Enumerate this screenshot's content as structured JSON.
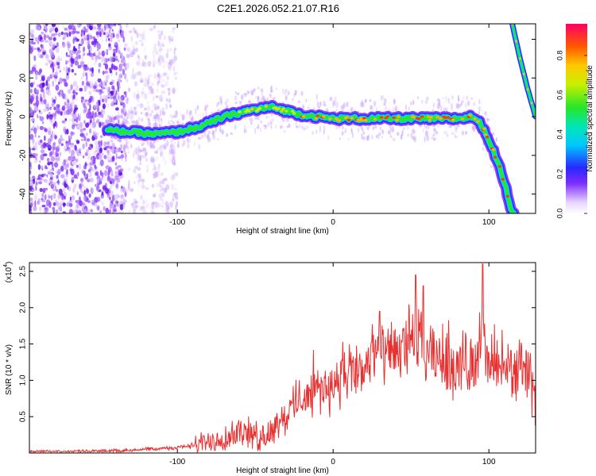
{
  "title": "C2E1.2026.052.21.07.R16",
  "chart_data": [
    {
      "type": "heatmap",
      "xlabel": "Height of straight line (km)",
      "ylabel": "Frequency (Hz)",
      "xlim": [
        -195,
        130
      ],
      "ylim": [
        -50,
        48
      ],
      "xticks": [
        "-100",
        "0",
        "100"
      ],
      "yticks": [
        "-40",
        "-20",
        "0",
        "20",
        "40"
      ],
      "colorbar": {
        "label": "Normalized spectral amplitude",
        "range": [
          0,
          0.96
        ],
        "ticks": [
          "0.0",
          "0.2",
          "0.4",
          "0.6",
          "0.8"
        ]
      },
      "ridge_frequency": {
        "x": [
          -145,
          -130,
          -115,
          -100,
          -85,
          -70,
          -55,
          -40,
          -30,
          -20,
          -10,
          0,
          20,
          40,
          60,
          80,
          90,
          95,
          100,
          105,
          110,
          115
        ],
        "y": [
          -7,
          -8,
          -9,
          -8,
          -5,
          0,
          3,
          5,
          3,
          1,
          0,
          -1,
          -1,
          -1,
          -1,
          -1,
          0,
          -4,
          -12,
          -22,
          -34,
          -50
        ]
      },
      "second_branch": {
        "x": [
          115,
          120,
          125,
          130
        ],
        "y": [
          48,
          30,
          14,
          0
        ]
      }
    },
    {
      "type": "line",
      "xlabel": "Height of straight line (km)",
      "ylabel": "SNR (10 * v/v)",
      "yscale_label": "(x10^4)",
      "xlim": [
        -195,
        130
      ],
      "ylim": [
        0,
        2.62
      ],
      "xticks": [
        "-100",
        "0",
        "100"
      ],
      "yticks": [
        "0.5",
        "1.0",
        "1.5",
        "2.0",
        "2.5"
      ],
      "series": [
        {
          "color": "#e83030",
          "x": [
            -195,
            -170,
            -150,
            -130,
            -110,
            -90,
            -80,
            -70,
            -60,
            -50,
            -45,
            -40,
            -35,
            -30,
            -20,
            -10,
            0,
            10,
            20,
            25,
            30,
            40,
            50,
            55,
            60,
            70,
            80,
            90,
            95,
            100,
            110,
            120,
            125,
            130
          ],
          "y": [
            0.02,
            0.02,
            0.03,
            0.04,
            0.06,
            0.1,
            0.15,
            0.22,
            0.3,
            0.25,
            0.2,
            0.3,
            0.45,
            0.5,
            0.8,
            0.85,
            0.95,
            1.05,
            1.15,
            1.4,
            1.3,
            1.35,
            1.6,
            1.5,
            1.3,
            1.3,
            1.2,
            1.25,
            1.6,
            1.2,
            1.15,
            1.1,
            1.05,
            0.7
          ]
        }
      ],
      "peaks": [
        {
          "x": 30,
          "y": 1.95
        },
        {
          "x": 53,
          "y": 2.45
        },
        {
          "x": 58,
          "y": 2.3
        },
        {
          "x": 96,
          "y": 2.6
        }
      ]
    }
  ]
}
